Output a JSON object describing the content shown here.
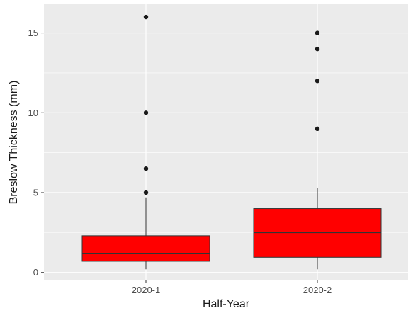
{
  "chart_data": {
    "type": "boxplot",
    "xlabel": "Half-Year",
    "ylabel": "Breslow Thickness (mm)",
    "ylim": [
      -0.5,
      16.8
    ],
    "yticks": [
      0,
      5,
      10,
      15
    ],
    "grid": true,
    "categories": [
      "2020-1",
      "2020-2"
    ],
    "colors": {
      "panel": "#EBEBEB",
      "grid": "#FFFFFF",
      "box_fill": "#FF0000",
      "box_line": "#333333",
      "outlier": "#1A1A1A"
    },
    "boxes": [
      {
        "category": "2020-1",
        "whisker_low": 0.2,
        "q1": 0.7,
        "median": 1.2,
        "q3": 2.3,
        "whisker_high": 4.7,
        "outliers": [
          5.0,
          6.5,
          10.0,
          16.0
        ]
      },
      {
        "category": "2020-2",
        "whisker_low": 0.2,
        "q1": 0.95,
        "median": 2.5,
        "q3": 4.0,
        "whisker_high": 5.3,
        "outliers": [
          9.0,
          12.0,
          14.0,
          15.0
        ]
      }
    ]
  }
}
